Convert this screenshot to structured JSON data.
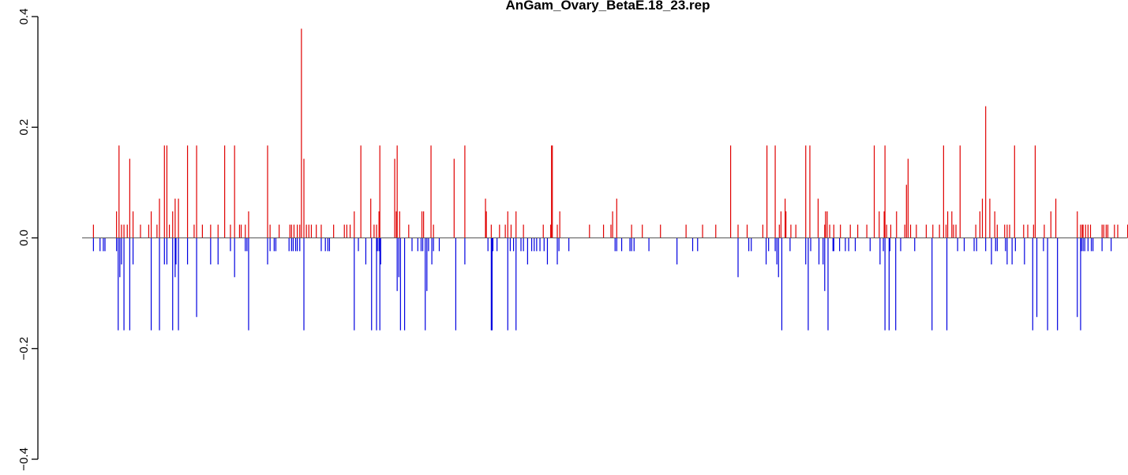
{
  "chart_data": {
    "type": "bar",
    "title": "AnGam_Ovary_BetaE.18_23.rep",
    "xlabel": "",
    "ylabel": "",
    "ylim": [
      -0.4,
      0.4
    ],
    "yticks": [
      -0.4,
      -0.2,
      0.0,
      0.2,
      0.4
    ],
    "ytick_labels": [
      "−0.4",
      "−0.2",
      "0.0",
      "0.2",
      "0.4"
    ],
    "grid": false,
    "legend": "none",
    "colors": {
      "positive": "#e00000",
      "negative": "#0000e0",
      "baseline": "#555555"
    },
    "x_range": [
      1,
      1250
    ],
    "positive": [
      [
        9,
        0.024
      ],
      [
        37,
        0.048
      ],
      [
        40,
        0.167
      ],
      [
        43,
        0.024
      ],
      [
        46,
        0.024
      ],
      [
        50,
        0.024
      ],
      [
        53,
        0.143
      ],
      [
        57,
        0.048
      ],
      [
        66,
        0.024
      ],
      [
        76,
        0.024
      ],
      [
        79,
        0.048
      ],
      [
        86,
        0.024
      ],
      [
        89,
        0.071
      ],
      [
        95,
        0.167
      ],
      [
        98,
        0.167
      ],
      [
        101,
        0.024
      ],
      [
        105,
        0.048
      ],
      [
        108,
        0.071
      ],
      [
        112,
        0.071
      ],
      [
        123,
        0.167
      ],
      [
        131,
        0.024
      ],
      [
        134,
        0.167
      ],
      [
        141,
        0.024
      ],
      [
        151,
        0.024
      ],
      [
        160,
        0.024
      ],
      [
        168,
        0.167
      ],
      [
        175,
        0.024
      ],
      [
        180,
        0.167
      ],
      [
        186,
        0.024
      ],
      [
        188,
        0.024
      ],
      [
        193,
        0.024
      ],
      [
        197,
        0.048
      ],
      [
        220,
        0.167
      ],
      [
        223,
        0.024
      ],
      [
        234,
        0.024
      ],
      [
        247,
        0.024
      ],
      [
        249,
        0.024
      ],
      [
        252,
        0.024
      ],
      [
        256,
        0.024
      ],
      [
        259,
        0.024
      ],
      [
        261,
        0.378
      ],
      [
        264,
        0.143
      ],
      [
        267,
        0.024
      ],
      [
        270,
        0.024
      ],
      [
        273,
        0.024
      ],
      [
        279,
        0.024
      ],
      [
        285,
        0.024
      ],
      [
        300,
        0.024
      ],
      [
        313,
        0.024
      ],
      [
        316,
        0.024
      ],
      [
        320,
        0.024
      ],
      [
        325,
        0.048
      ],
      [
        333,
        0.167
      ],
      [
        345,
        0.071
      ],
      [
        349,
        0.024
      ],
      [
        352,
        0.024
      ],
      [
        355,
        0.048
      ],
      [
        356,
        0.167
      ],
      [
        374,
        0.143
      ],
      [
        376,
        0.048
      ],
      [
        377,
        0.167
      ],
      [
        380,
        0.048
      ],
      [
        391,
        0.024
      ],
      [
        407,
        0.048
      ],
      [
        409,
        0.048
      ],
      [
        418,
        0.167
      ],
      [
        421,
        0.024
      ],
      [
        446,
        0.143
      ],
      [
        459,
        0.167
      ],
      [
        484,
        0.071
      ],
      [
        485,
        0.048
      ],
      [
        491,
        0.024
      ],
      [
        501,
        0.024
      ],
      [
        508,
        0.024
      ],
      [
        511,
        0.048
      ],
      [
        515,
        0.024
      ],
      [
        521,
        0.048
      ],
      [
        530,
        0.024
      ],
      [
        554,
        0.024
      ],
      [
        563,
        0.024
      ],
      [
        564,
        0.167
      ],
      [
        565,
        0.167
      ],
      [
        571,
        0.024
      ],
      [
        574,
        0.048
      ],
      [
        610,
        0.024
      ],
      [
        627,
        0.024
      ],
      [
        636,
        0.024
      ],
      [
        638,
        0.048
      ],
      [
        643,
        0.071
      ],
      [
        661,
        0.024
      ],
      [
        674,
        0.024
      ],
      [
        696,
        0.024
      ],
      [
        727,
        0.024
      ],
      [
        747,
        0.024
      ],
      [
        763,
        0.024
      ],
      [
        781,
        0.167
      ],
      [
        790,
        0.024
      ],
      [
        801,
        0.024
      ],
      [
        820,
        0.024
      ],
      [
        825,
        0.167
      ],
      [
        835,
        0.167
      ],
      [
        840,
        0.024
      ],
      [
        842,
        0.048
      ],
      [
        847,
        0.071
      ],
      [
        848,
        0.048
      ],
      [
        854,
        0.024
      ],
      [
        860,
        0.024
      ],
      [
        872,
        0.167
      ],
      [
        877,
        0.167
      ],
      [
        887,
        0.071
      ],
      [
        895,
        0.024
      ],
      [
        896,
        0.048
      ],
      [
        898,
        0.048
      ],
      [
        901,
        0.024
      ],
      [
        906,
        0.024
      ],
      [
        914,
        0.024
      ],
      [
        926,
        0.024
      ],
      [
        935,
        0.024
      ],
      [
        946,
        0.024
      ],
      [
        955,
        0.167
      ],
      [
        961,
        0.048
      ],
      [
        967,
        0.048
      ],
      [
        968,
        0.167
      ],
      [
        970,
        0.024
      ],
      [
        975,
        0.024
      ],
      [
        982,
        0.048
      ],
      [
        992,
        0.024
      ],
      [
        994,
        0.096
      ],
      [
        996,
        0.143
      ],
      [
        999,
        0.024
      ],
      [
        1006,
        0.024
      ],
      [
        1018,
        0.024
      ],
      [
        1026,
        0.024
      ],
      [
        1034,
        0.024
      ],
      [
        1039,
        0.167
      ],
      [
        1042,
        0.024
      ],
      [
        1044,
        0.048
      ],
      [
        1049,
        0.048
      ],
      [
        1051,
        0.024
      ],
      [
        1054,
        0.024
      ],
      [
        1059,
        0.167
      ],
      [
        1078,
        0.024
      ],
      [
        1083,
        0.048
      ],
      [
        1086,
        0.071
      ],
      [
        1090,
        0.238
      ],
      [
        1095,
        0.071
      ],
      [
        1101,
        0.048
      ],
      [
        1104,
        0.024
      ],
      [
        1113,
        0.024
      ],
      [
        1116,
        0.024
      ],
      [
        1119,
        0.024
      ],
      [
        1125,
        0.167
      ],
      [
        1136,
        0.024
      ],
      [
        1141,
        0.024
      ],
      [
        1148,
        0.024
      ],
      [
        1150,
        0.167
      ],
      [
        1161,
        0.024
      ],
      [
        1169,
        0.048
      ],
      [
        1175,
        0.071
      ],
      [
        1201,
        0.048
      ],
      [
        1205,
        0.024
      ],
      [
        1207,
        0.024
      ],
      [
        1208,
        0.024
      ],
      [
        1211,
        0.024
      ],
      [
        1214,
        0.024
      ],
      [
        1217,
        0.024
      ],
      [
        1231,
        0.024
      ],
      [
        1233,
        0.024
      ],
      [
        1236,
        0.024
      ],
      [
        1238,
        0.024
      ],
      [
        1246,
        0.024
      ],
      [
        1250,
        0.024
      ],
      [
        1262,
        0.024
      ],
      [
        1265,
        0.167
      ],
      [
        1268,
        0.024
      ],
      [
        1271,
        0.167
      ],
      [
        1279,
        0.024
      ],
      [
        1282,
        0.167
      ],
      [
        1285,
        0.024
      ],
      [
        1286,
        0.167
      ],
      [
        1289,
        0.024
      ],
      [
        1291,
        0.167
      ]
    ],
    "negative": [
      [
        9,
        -0.024
      ],
      [
        17,
        -0.024
      ],
      [
        21,
        -0.024
      ],
      [
        23,
        -0.024
      ],
      [
        37,
        -0.024
      ],
      [
        39,
        -0.167
      ],
      [
        41,
        -0.071
      ],
      [
        43,
        -0.048
      ],
      [
        46,
        -0.167
      ],
      [
        53,
        -0.167
      ],
      [
        57,
        -0.048
      ],
      [
        79,
        -0.167
      ],
      [
        89,
        -0.167
      ],
      [
        95,
        -0.048
      ],
      [
        98,
        -0.048
      ],
      [
        105,
        -0.167
      ],
      [
        108,
        -0.071
      ],
      [
        109,
        -0.048
      ],
      [
        112,
        -0.167
      ],
      [
        123,
        -0.048
      ],
      [
        134,
        -0.143
      ],
      [
        151,
        -0.048
      ],
      [
        160,
        -0.048
      ],
      [
        175,
        -0.024
      ],
      [
        180,
        -0.071
      ],
      [
        193,
        -0.024
      ],
      [
        195,
        -0.024
      ],
      [
        197,
        -0.167
      ],
      [
        220,
        -0.048
      ],
      [
        223,
        -0.024
      ],
      [
        228,
        -0.024
      ],
      [
        230,
        -0.024
      ],
      [
        246,
        -0.024
      ],
      [
        249,
        -0.024
      ],
      [
        251,
        -0.024
      ],
      [
        254,
        -0.024
      ],
      [
        256,
        -0.024
      ],
      [
        259,
        -0.024
      ],
      [
        264,
        -0.167
      ],
      [
        285,
        -0.024
      ],
      [
        290,
        -0.024
      ],
      [
        293,
        -0.024
      ],
      [
        295,
        -0.024
      ],
      [
        325,
        -0.167
      ],
      [
        330,
        -0.024
      ],
      [
        339,
        -0.048
      ],
      [
        346,
        -0.167
      ],
      [
        352,
        -0.167
      ],
      [
        353,
        -0.024
      ],
      [
        355,
        -0.024
      ],
      [
        356,
        -0.167
      ],
      [
        357,
        -0.048
      ],
      [
        377,
        -0.096
      ],
      [
        379,
        -0.071
      ],
      [
        381,
        -0.167
      ],
      [
        386,
        -0.167
      ],
      [
        395,
        -0.024
      ],
      [
        402,
        -0.024
      ],
      [
        406,
        -0.024
      ],
      [
        408,
        -0.024
      ],
      [
        411,
        -0.167
      ],
      [
        413,
        -0.096
      ],
      [
        415,
        -0.024
      ],
      [
        419,
        -0.048
      ],
      [
        421,
        -0.024
      ],
      [
        428,
        -0.024
      ],
      [
        448,
        -0.167
      ],
      [
        459,
        -0.048
      ],
      [
        487,
        -0.024
      ],
      [
        491,
        -0.167
      ],
      [
        492,
        -0.167
      ],
      [
        493,
        -0.024
      ],
      [
        498,
        -0.024
      ],
      [
        511,
        -0.167
      ],
      [
        514,
        -0.024
      ],
      [
        518,
        -0.024
      ],
      [
        521,
        -0.167
      ],
      [
        527,
        -0.024
      ],
      [
        530,
        -0.024
      ],
      [
        535,
        -0.048
      ],
      [
        540,
        -0.024
      ],
      [
        543,
        -0.024
      ],
      [
        546,
        -0.024
      ],
      [
        550,
        -0.024
      ],
      [
        555,
        -0.024
      ],
      [
        559,
        -0.048
      ],
      [
        571,
        -0.048
      ],
      [
        573,
        -0.024
      ],
      [
        585,
        -0.024
      ],
      [
        641,
        -0.024
      ],
      [
        643,
        -0.024
      ],
      [
        649,
        -0.024
      ],
      [
        659,
        -0.024
      ],
      [
        661,
        -0.024
      ],
      [
        664,
        -0.024
      ],
      [
        682,
        -0.024
      ],
      [
        716,
        -0.048
      ],
      [
        735,
        -0.024
      ],
      [
        741,
        -0.024
      ],
      [
        790,
        -0.071
      ],
      [
        803,
        -0.024
      ],
      [
        806,
        -0.024
      ],
      [
        824,
        -0.048
      ],
      [
        827,
        -0.024
      ],
      [
        835,
        -0.024
      ],
      [
        837,
        -0.048
      ],
      [
        839,
        -0.071
      ],
      [
        843,
        -0.167
      ],
      [
        853,
        -0.024
      ],
      [
        872,
        -0.048
      ],
      [
        875,
        -0.167
      ],
      [
        878,
        -0.024
      ],
      [
        888,
        -0.048
      ],
      [
        893,
        -0.048
      ],
      [
        895,
        -0.096
      ],
      [
        899,
        -0.167
      ],
      [
        905,
        -0.024
      ],
      [
        906,
        -0.024
      ],
      [
        913,
        -0.024
      ],
      [
        920,
        -0.024
      ],
      [
        924,
        -0.024
      ],
      [
        932,
        -0.024
      ],
      [
        950,
        -0.024
      ],
      [
        962,
        -0.048
      ],
      [
        966,
        -0.024
      ],
      [
        968,
        -0.167
      ],
      [
        973,
        -0.167
      ],
      [
        974,
        -0.024
      ],
      [
        981,
        -0.167
      ],
      [
        987,
        -0.024
      ],
      [
        1004,
        -0.024
      ],
      [
        1025,
        -0.167
      ],
      [
        1043,
        -0.167
      ],
      [
        1056,
        -0.024
      ],
      [
        1064,
        -0.024
      ],
      [
        1076,
        -0.024
      ],
      [
        1079,
        -0.024
      ],
      [
        1090,
        -0.024
      ],
      [
        1097,
        -0.048
      ],
      [
        1102,
        -0.024
      ],
      [
        1104,
        -0.024
      ],
      [
        1114,
        -0.024
      ],
      [
        1116,
        -0.048
      ],
      [
        1122,
        -0.048
      ],
      [
        1126,
        -0.024
      ],
      [
        1137,
        -0.048
      ],
      [
        1147,
        -0.167
      ],
      [
        1152,
        -0.143
      ],
      [
        1160,
        -0.024
      ],
      [
        1165,
        -0.167
      ],
      [
        1177,
        -0.167
      ],
      [
        1201,
        -0.143
      ],
      [
        1205,
        -0.167
      ],
      [
        1206,
        -0.024
      ],
      [
        1208,
        -0.024
      ],
      [
        1210,
        -0.024
      ],
      [
        1214,
        -0.024
      ],
      [
        1218,
        -0.024
      ],
      [
        1220,
        -0.024
      ],
      [
        1231,
        -0.024
      ],
      [
        1242,
        -0.024
      ],
      [
        1263,
        -0.024
      ],
      [
        1273,
        -0.024
      ],
      [
        1282,
        -0.143
      ],
      [
        1285,
        -0.048
      ],
      [
        1286,
        -0.024
      ],
      [
        1289,
        -0.143
      ]
    ]
  }
}
